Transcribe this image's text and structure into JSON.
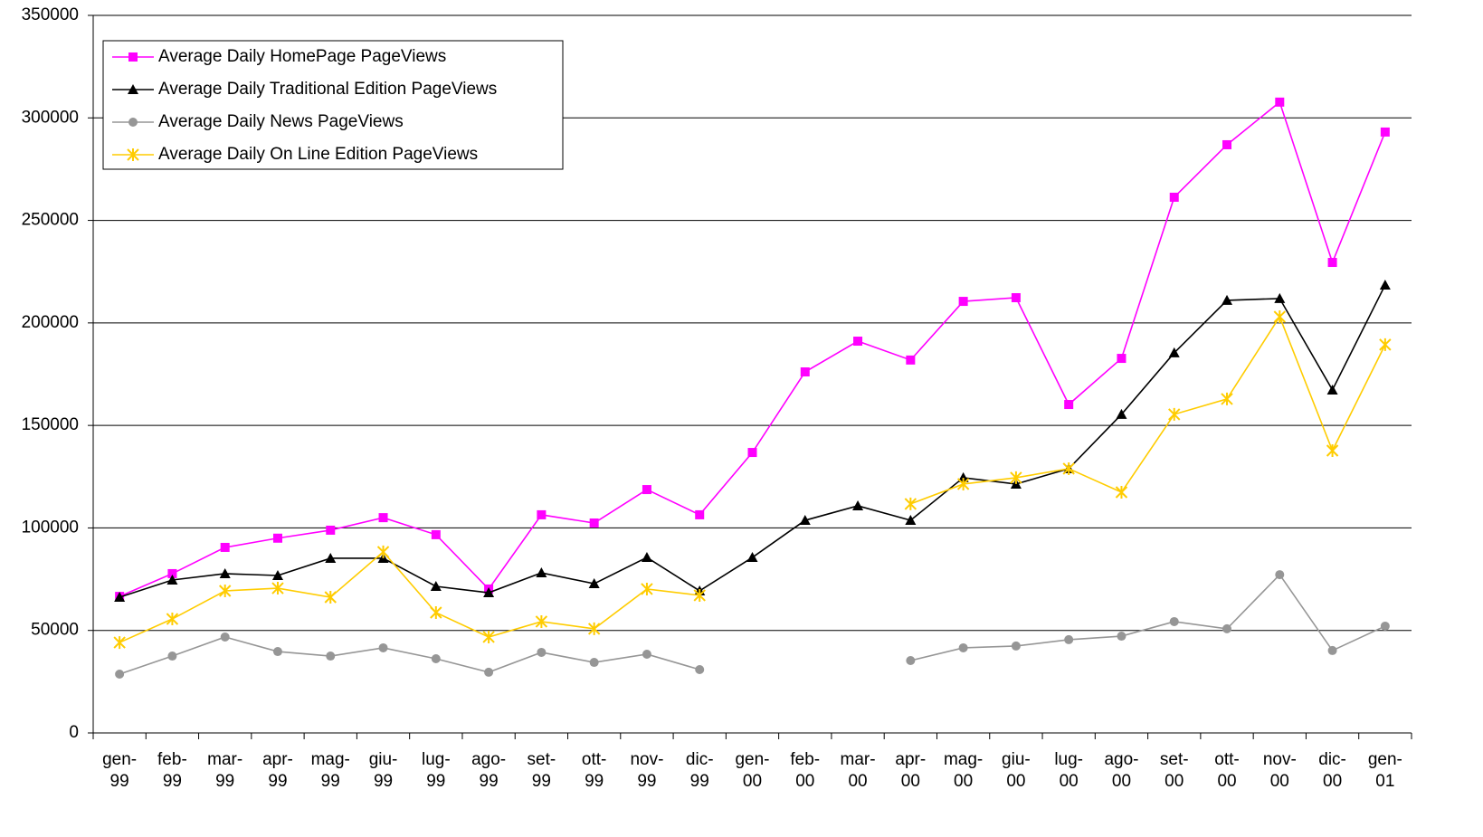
{
  "chart_data": {
    "type": "line",
    "categories": [
      "gen-99",
      "feb-99",
      "mar-99",
      "apr-99",
      "mag-99",
      "giu-99",
      "lug-99",
      "ago-99",
      "set-99",
      "ott-99",
      "nov-99",
      "dic-99",
      "gen-00",
      "feb-00",
      "mar-00",
      "apr-00",
      "mag-00",
      "giu-00",
      "lug-00",
      "ago-00",
      "set-00",
      "ott-00",
      "nov-00",
      "dic-00",
      "gen-01"
    ],
    "series": [
      {
        "name": "Average Daily HomePage PageViews",
        "color": "#ff00ff",
        "marker": "square",
        "values": [
          66600,
          77700,
          90500,
          95000,
          98900,
          105000,
          96700,
          70200,
          106400,
          102400,
          118700,
          106400,
          136800,
          176100,
          191100,
          181900,
          210500,
          212300,
          160200,
          182700,
          261300,
          286900,
          307700,
          229500,
          293100
        ]
      },
      {
        "name": "Average Daily Traditional Edition PageViews",
        "color": "#000000",
        "marker": "triangle",
        "values": [
          66200,
          74600,
          77700,
          76800,
          85200,
          85200,
          71500,
          68400,
          78100,
          72800,
          85600,
          69300,
          85600,
          103700,
          110800,
          103700,
          124500,
          121400,
          128900,
          155400,
          185400,
          211000,
          211900,
          167300,
          218500
        ]
      },
      {
        "name": "Average Daily News PageViews",
        "color": "#969696",
        "marker": "circle",
        "values": [
          28700,
          37500,
          46800,
          39700,
          37500,
          41500,
          36200,
          29600,
          39300,
          34400,
          38400,
          30900,
          null,
          null,
          null,
          35300,
          41500,
          42400,
          45500,
          47200,
          54300,
          50800,
          77200,
          40200,
          52100
        ]
      },
      {
        "name": "Average Daily On Line Edition PageViews",
        "color": "#ffcc00",
        "marker": "star",
        "values": [
          44100,
          55600,
          69300,
          70600,
          66200,
          88300,
          58700,
          46800,
          54300,
          50800,
          70200,
          67100,
          null,
          null,
          null,
          111700,
          121400,
          124500,
          128900,
          117400,
          155400,
          162900,
          203000,
          137700,
          189400
        ]
      }
    ],
    "ylim": [
      0,
      350000
    ],
    "yticks": [
      0,
      50000,
      100000,
      150000,
      200000,
      250000,
      300000,
      350000
    ],
    "grid": true,
    "legend": "upper left"
  }
}
